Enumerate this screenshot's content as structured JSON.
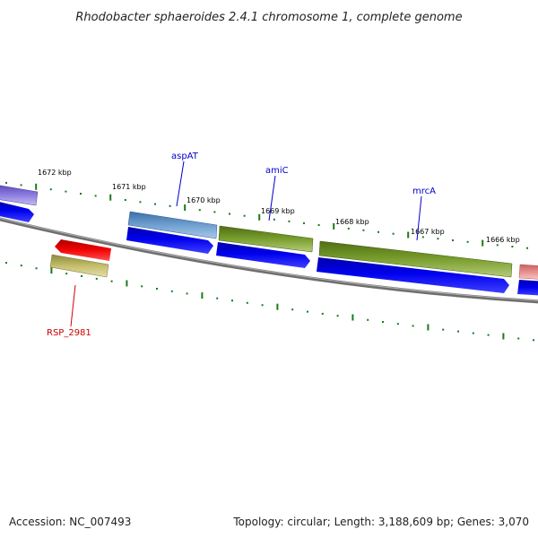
{
  "title": "Rhodobacter sphaeroides 2.4.1 chromosome 1, complete genome",
  "footer": {
    "accession": "Accession: NC_007493",
    "summary": "Topology: circular; Length: 3,188,609 bp; Genes: 3,070"
  },
  "ruler_labels": [
    "1672 kbp",
    "1671 kbp",
    "1670 kbp",
    "1669 kbp",
    "1668 kbp",
    "1667 kbp",
    "1666 kbp"
  ],
  "genes": [
    {
      "name": "aspAT",
      "color": "#4a7fb5",
      "label_color": "#0000cc"
    },
    {
      "name": "amiC",
      "color": "#6b8e23",
      "label_color": "#0000cc"
    },
    {
      "name": "mrcA",
      "color": "#6b8e23",
      "label_color": "#0000cc"
    },
    {
      "name": "RSP_2981",
      "color": "#b8b460",
      "label_color": "#cc0000"
    }
  ],
  "colors": {
    "cds": "#0000ee",
    "cds_red": "#ee0000",
    "backbone": "#808080",
    "tick": "#1a7a1a",
    "purple_gene": "#6a5acd",
    "pink_gene": "#e08080"
  }
}
